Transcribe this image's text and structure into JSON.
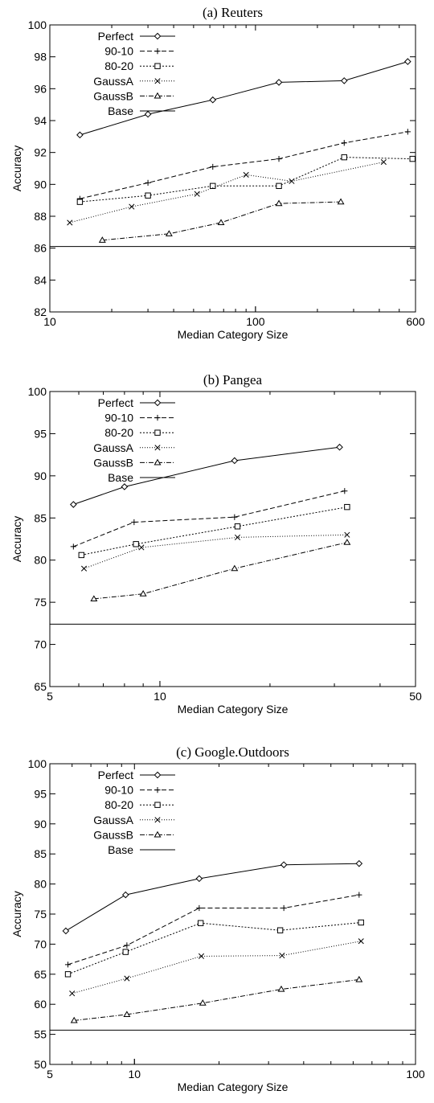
{
  "chart_data": [
    {
      "type": "line",
      "title": "(a) Reuters",
      "xlabel": "Median Category Size",
      "ylabel": "Accuracy",
      "xscale": "log",
      "xlim": [
        10,
        600
      ],
      "ylim": [
        82,
        100
      ],
      "xticks": [
        10,
        100,
        600
      ],
      "xtick_labels": [
        "10",
        "100",
        "600"
      ],
      "yticks": [
        82,
        84,
        86,
        88,
        90,
        92,
        94,
        96,
        98,
        100
      ],
      "ytick_labels": [
        "82",
        "84",
        "86",
        "88",
        "90",
        "92",
        "94",
        "96",
        "98",
        "100"
      ],
      "legend": "top-left",
      "baseline": {
        "name": "Base",
        "value": 86.1
      },
      "series": [
        {
          "name": "Perfect",
          "marker": "diamond",
          "dash": "",
          "x": [
            14,
            30,
            62,
            130,
            270,
            550
          ],
          "y": [
            93.1,
            94.4,
            95.3,
            96.4,
            96.5,
            97.7
          ]
        },
        {
          "name": "90-10",
          "marker": "plus",
          "dash": "6,3",
          "x": [
            14,
            30,
            62,
            130,
            270,
            550
          ],
          "y": [
            89.1,
            90.1,
            91.1,
            91.6,
            92.6,
            93.3
          ]
        },
        {
          "name": "80-20",
          "marker": "square",
          "dash": "2,2",
          "x": [
            14,
            30,
            62,
            130,
            270,
            580
          ],
          "y": [
            88.9,
            89.3,
            89.9,
            89.9,
            91.7,
            91.6
          ]
        },
        {
          "name": "GaussA",
          "marker": "x",
          "dash": "1,2",
          "x": [
            12.5,
            25,
            52,
            90,
            150,
            420
          ],
          "y": [
            87.6,
            88.6,
            89.4,
            90.6,
            90.2,
            91.4
          ]
        },
        {
          "name": "GaussB",
          "marker": "triangle",
          "dash": "6,2,1,2",
          "x": [
            18,
            38,
            68,
            130,
            260
          ],
          "y": [
            86.5,
            86.9,
            87.6,
            88.8,
            88.9
          ]
        }
      ]
    },
    {
      "type": "line",
      "title": "(b) Pangea",
      "xlabel": "Median Category Size",
      "ylabel": "Accuracy",
      "xscale": "log",
      "xlim": [
        5,
        50
      ],
      "ylim": [
        65,
        100
      ],
      "xticks": [
        5,
        10,
        50
      ],
      "xtick_labels": [
        "5",
        "10",
        "50"
      ],
      "yticks": [
        65,
        70,
        75,
        80,
        85,
        90,
        95,
        100
      ],
      "ytick_labels": [
        "65",
        "70",
        "75",
        "80",
        "85",
        "90",
        "95",
        "100"
      ],
      "legend": "top-left",
      "baseline": {
        "name": "Base",
        "value": 72.4
      },
      "series": [
        {
          "name": "Perfect",
          "marker": "diamond",
          "dash": "",
          "x": [
            5.8,
            8,
            16,
            31
          ],
          "y": [
            86.6,
            88.7,
            91.8,
            93.4
          ]
        },
        {
          "name": "90-10",
          "marker": "plus",
          "dash": "6,3",
          "x": [
            5.8,
            8.5,
            16,
            32
          ],
          "y": [
            81.6,
            84.5,
            85.1,
            88.2
          ]
        },
        {
          "name": "80-20",
          "marker": "square",
          "dash": "2,2",
          "x": [
            6.1,
            8.6,
            16.3,
            32.5
          ],
          "y": [
            80.6,
            81.9,
            84.0,
            86.3
          ]
        },
        {
          "name": "GaussA",
          "marker": "x",
          "dash": "1,2",
          "x": [
            6.2,
            8.9,
            16.3,
            32.5
          ],
          "y": [
            79.0,
            81.5,
            82.7,
            83.0
          ]
        },
        {
          "name": "GaussB",
          "marker": "triangle",
          "dash": "6,2,1,2",
          "x": [
            6.6,
            9.0,
            16.0,
            32.5
          ],
          "y": [
            75.4,
            76.0,
            79.0,
            82.1
          ]
        }
      ]
    },
    {
      "type": "line",
      "title": "(c) Google.Outdoors",
      "xlabel": "Median Category Size",
      "ylabel": "Accuracy",
      "xscale": "log",
      "xlim": [
        5,
        100
      ],
      "ylim": [
        50,
        100
      ],
      "xticks": [
        5,
        10,
        100
      ],
      "xtick_labels": [
        "5",
        "10",
        "100"
      ],
      "yticks": [
        50,
        55,
        60,
        65,
        70,
        75,
        80,
        85,
        90,
        95,
        100
      ],
      "ytick_labels": [
        "50",
        "55",
        "60",
        "65",
        "70",
        "75",
        "80",
        "85",
        "90",
        "95",
        "100"
      ],
      "legend": "top-left",
      "baseline": {
        "name": "Base",
        "value": 55.7
      },
      "series": [
        {
          "name": "Perfect",
          "marker": "diamond",
          "dash": "",
          "x": [
            5.7,
            9.3,
            17,
            34,
            63
          ],
          "y": [
            72.2,
            78.2,
            80.9,
            83.2,
            83.4
          ]
        },
        {
          "name": "90-10",
          "marker": "plus",
          "dash": "6,3",
          "x": [
            5.8,
            9.4,
            17,
            34,
            63
          ],
          "y": [
            66.6,
            69.8,
            76.0,
            76.0,
            78.2
          ]
        },
        {
          "name": "80-20",
          "marker": "square",
          "dash": "2,2",
          "x": [
            5.8,
            9.3,
            17.2,
            33,
            64
          ],
          "y": [
            65.0,
            68.7,
            73.5,
            72.3,
            73.6
          ]
        },
        {
          "name": "GaussA",
          "marker": "x",
          "dash": "1,2",
          "x": [
            6.0,
            9.4,
            17.3,
            33.5,
            64
          ],
          "y": [
            61.8,
            64.3,
            68.0,
            68.1,
            70.5
          ]
        },
        {
          "name": "GaussB",
          "marker": "triangle",
          "dash": "6,2,1,2",
          "x": [
            6.1,
            9.4,
            17.5,
            33.3,
            63
          ],
          "y": [
            57.3,
            58.3,
            60.2,
            62.5,
            64.1
          ]
        }
      ]
    }
  ]
}
